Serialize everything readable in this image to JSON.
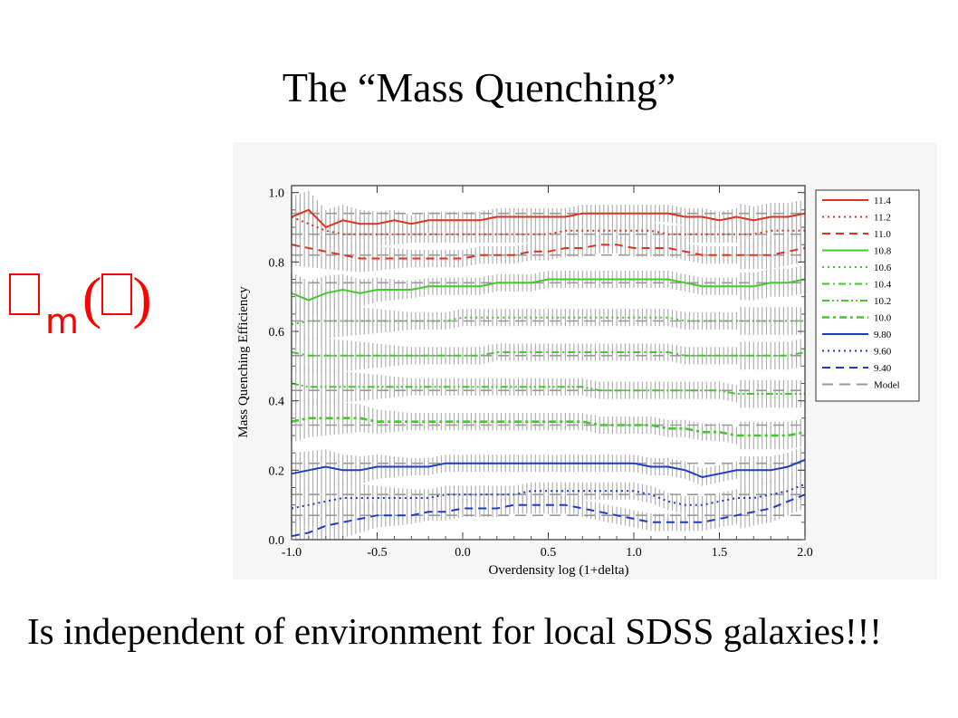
{
  "slide": {
    "title": "The “Mass Quenching”",
    "symbol_subscript": "m",
    "symbol_open": "(",
    "symbol_close": ")",
    "caption": "Is independent of environment for local SDSS galaxies!!!"
  },
  "chart_data": {
    "type": "line",
    "xlabel": "Overdensity log (1+delta)",
    "ylabel": "Mass Quenching Efficiency",
    "xlim": [
      -1.0,
      2.0
    ],
    "ylim": [
      0.0,
      1.02
    ],
    "xticks": [
      "-1.0",
      "-0.5",
      "0.0",
      "0.5",
      "1.0",
      "1.5",
      "2.0"
    ],
    "yticks": [
      "0.0",
      "0.2",
      "0.4",
      "0.6",
      "0.8",
      "1.0"
    ],
    "grid": false,
    "legend_position": "right",
    "error_bar_color": "#b0b0b0",
    "x": [
      -1.0,
      -0.9,
      -0.8,
      -0.7,
      -0.6,
      -0.5,
      -0.4,
      -0.3,
      -0.2,
      -0.1,
      0.0,
      0.1,
      0.2,
      0.3,
      0.4,
      0.5,
      0.6,
      0.7,
      0.8,
      0.9,
      1.0,
      1.1,
      1.2,
      1.3,
      1.4,
      1.5,
      1.6,
      1.7,
      1.8,
      1.9,
      2.0
    ],
    "series": [
      {
        "name": "11.4",
        "color": "#e0321e",
        "dash": "solid",
        "values": [
          0.93,
          0.95,
          0.9,
          0.92,
          0.91,
          0.91,
          0.92,
          0.91,
          0.92,
          0.92,
          0.92,
          0.92,
          0.93,
          0.93,
          0.93,
          0.93,
          0.93,
          0.94,
          0.94,
          0.94,
          0.94,
          0.94,
          0.94,
          0.93,
          0.93,
          0.92,
          0.93,
          0.92,
          0.93,
          0.93,
          0.94
        ],
        "model": 0.94
      },
      {
        "name": "11.2",
        "color": "#e0321e",
        "dash": "dot",
        "values": [
          0.93,
          0.91,
          0.89,
          0.88,
          0.88,
          0.88,
          0.88,
          0.88,
          0.88,
          0.88,
          0.88,
          0.88,
          0.88,
          0.88,
          0.88,
          0.88,
          0.89,
          0.89,
          0.89,
          0.89,
          0.89,
          0.89,
          0.88,
          0.88,
          0.88,
          0.88,
          0.88,
          0.88,
          0.89,
          0.89,
          0.89
        ],
        "model": 0.88
      },
      {
        "name": "11.0",
        "color": "#e0321e",
        "dash": "dash",
        "values": [
          0.85,
          0.84,
          0.83,
          0.82,
          0.81,
          0.81,
          0.81,
          0.81,
          0.81,
          0.81,
          0.81,
          0.82,
          0.82,
          0.82,
          0.83,
          0.83,
          0.84,
          0.84,
          0.85,
          0.85,
          0.84,
          0.84,
          0.84,
          0.83,
          0.82,
          0.82,
          0.82,
          0.82,
          0.82,
          0.83,
          0.84
        ],
        "model": 0.82
      },
      {
        "name": "10.8",
        "color": "#44c82d",
        "dash": "solid",
        "values": [
          0.71,
          0.69,
          0.71,
          0.72,
          0.71,
          0.72,
          0.72,
          0.72,
          0.73,
          0.73,
          0.73,
          0.73,
          0.74,
          0.74,
          0.74,
          0.75,
          0.75,
          0.75,
          0.75,
          0.75,
          0.75,
          0.75,
          0.75,
          0.74,
          0.73,
          0.73,
          0.73,
          0.73,
          0.74,
          0.74,
          0.75
        ],
        "model": 0.74
      },
      {
        "name": "10.6",
        "color": "#44c82d",
        "dash": "dot",
        "values": [
          0.62,
          0.63,
          0.63,
          0.63,
          0.63,
          0.63,
          0.63,
          0.63,
          0.63,
          0.63,
          0.64,
          0.64,
          0.64,
          0.64,
          0.64,
          0.64,
          0.64,
          0.64,
          0.64,
          0.64,
          0.64,
          0.64,
          0.64,
          0.63,
          0.63,
          0.63,
          0.63,
          0.63,
          0.63,
          0.63,
          0.63
        ],
        "model": 0.63
      },
      {
        "name": "10.4",
        "color": "#44c82d",
        "dash": "dashdot",
        "values": [
          0.54,
          0.53,
          0.53,
          0.53,
          0.53,
          0.53,
          0.53,
          0.53,
          0.53,
          0.53,
          0.53,
          0.53,
          0.54,
          0.54,
          0.54,
          0.54,
          0.54,
          0.54,
          0.54,
          0.54,
          0.54,
          0.54,
          0.54,
          0.53,
          0.53,
          0.53,
          0.53,
          0.53,
          0.53,
          0.53,
          0.54
        ],
        "model": 0.53
      },
      {
        "name": "10.2",
        "color": "#44c82d",
        "dash": "dashdotdot",
        "values": [
          0.45,
          0.44,
          0.44,
          0.44,
          0.44,
          0.44,
          0.44,
          0.44,
          0.44,
          0.44,
          0.44,
          0.44,
          0.44,
          0.44,
          0.44,
          0.44,
          0.44,
          0.44,
          0.43,
          0.43,
          0.43,
          0.43,
          0.43,
          0.43,
          0.43,
          0.43,
          0.42,
          0.42,
          0.42,
          0.42,
          0.42
        ],
        "model": 0.43
      },
      {
        "name": "10.0",
        "color": "#44c82d",
        "dash": "dashdot-thick",
        "values": [
          0.34,
          0.35,
          0.35,
          0.35,
          0.35,
          0.34,
          0.34,
          0.34,
          0.34,
          0.34,
          0.34,
          0.34,
          0.34,
          0.34,
          0.34,
          0.34,
          0.34,
          0.34,
          0.33,
          0.33,
          0.33,
          0.33,
          0.32,
          0.32,
          0.31,
          0.31,
          0.3,
          0.3,
          0.3,
          0.3,
          0.31
        ],
        "model": 0.33
      },
      {
        "name": "9.80",
        "color": "#1e3cc8",
        "dash": "solid",
        "values": [
          0.19,
          0.2,
          0.21,
          0.2,
          0.2,
          0.21,
          0.21,
          0.21,
          0.21,
          0.22,
          0.22,
          0.22,
          0.22,
          0.22,
          0.22,
          0.22,
          0.22,
          0.22,
          0.22,
          0.22,
          0.22,
          0.21,
          0.21,
          0.2,
          0.18,
          0.19,
          0.2,
          0.2,
          0.2,
          0.21,
          0.23
        ],
        "model": 0.22
      },
      {
        "name": "9.60",
        "color": "#1e3cc8",
        "dash": "dot",
        "values": [
          0.09,
          0.1,
          0.11,
          0.12,
          0.12,
          0.12,
          0.12,
          0.12,
          0.12,
          0.13,
          0.13,
          0.13,
          0.13,
          0.13,
          0.14,
          0.14,
          0.14,
          0.14,
          0.14,
          0.14,
          0.14,
          0.13,
          0.11,
          0.1,
          0.1,
          0.11,
          0.12,
          0.12,
          0.13,
          0.14,
          0.16
        ],
        "model": 0.13
      },
      {
        "name": "9.40",
        "color": "#1e3cc8",
        "dash": "dash",
        "values": [
          0.01,
          0.02,
          0.04,
          0.05,
          0.06,
          0.07,
          0.07,
          0.07,
          0.08,
          0.08,
          0.09,
          0.09,
          0.09,
          0.1,
          0.1,
          0.1,
          0.1,
          0.09,
          0.08,
          0.07,
          0.06,
          0.05,
          0.05,
          0.05,
          0.05,
          0.06,
          0.07,
          0.08,
          0.09,
          0.11,
          0.13
        ],
        "model": 0.07
      },
      {
        "name": "Model",
        "color": "#9a9a9a",
        "dash": "dash"
      }
    ]
  }
}
